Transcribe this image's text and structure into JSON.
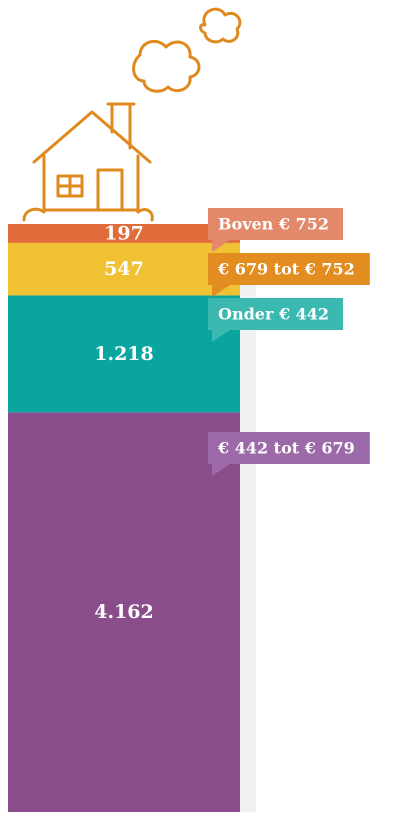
{
  "chart_data": {
    "type": "stacked-column",
    "series": [
      {
        "name": "€ 442 tot € 679",
        "color": "#8a4d8c",
        "label_color": "#9d6aa9",
        "values": [
          4162
        ],
        "value_labels": [
          "4.162"
        ]
      },
      {
        "name": "Onder € 442",
        "color": "#0aa59f",
        "label_color": "#3bb9b1",
        "values": [
          1218
        ],
        "value_labels": [
          "1.218"
        ]
      },
      {
        "name": "€ 679 tot € 752",
        "color": "#f0c133",
        "label_color": "#e38c1f",
        "values": [
          547
        ]
      },
      {
        "name": "Boven € 752",
        "color": "#e06b3b",
        "label_color": "#e3896a",
        "values": [
          197
        ]
      }
    ]
  }
}
